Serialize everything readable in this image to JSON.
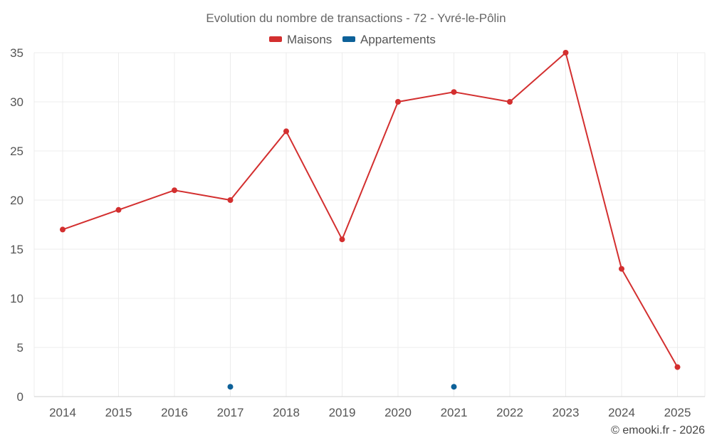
{
  "chart_data": {
    "type": "line",
    "title": "Evolution du nombre de transactions - 72 - Yvré-le-Pôlin",
    "x": [
      "2014",
      "2015",
      "2016",
      "2017",
      "2018",
      "2019",
      "2020",
      "2021",
      "2022",
      "2023",
      "2024",
      "2025"
    ],
    "yticks": [
      0,
      5,
      10,
      15,
      20,
      25,
      30,
      35
    ],
    "ylim": [
      0,
      35
    ],
    "grid": true,
    "legend_position": "top-center",
    "series": [
      {
        "name": "Maisons",
        "color": "#d32f2f",
        "values": [
          17,
          19,
          21,
          20,
          27,
          16,
          30,
          31,
          30,
          35,
          13,
          3
        ],
        "line": true
      },
      {
        "name": "Appartements",
        "color": "#0d6199",
        "values": [
          null,
          null,
          null,
          1,
          null,
          null,
          null,
          1,
          null,
          null,
          null,
          null
        ],
        "line": false
      }
    ],
    "credit": "© emooki.fr - 2026"
  }
}
